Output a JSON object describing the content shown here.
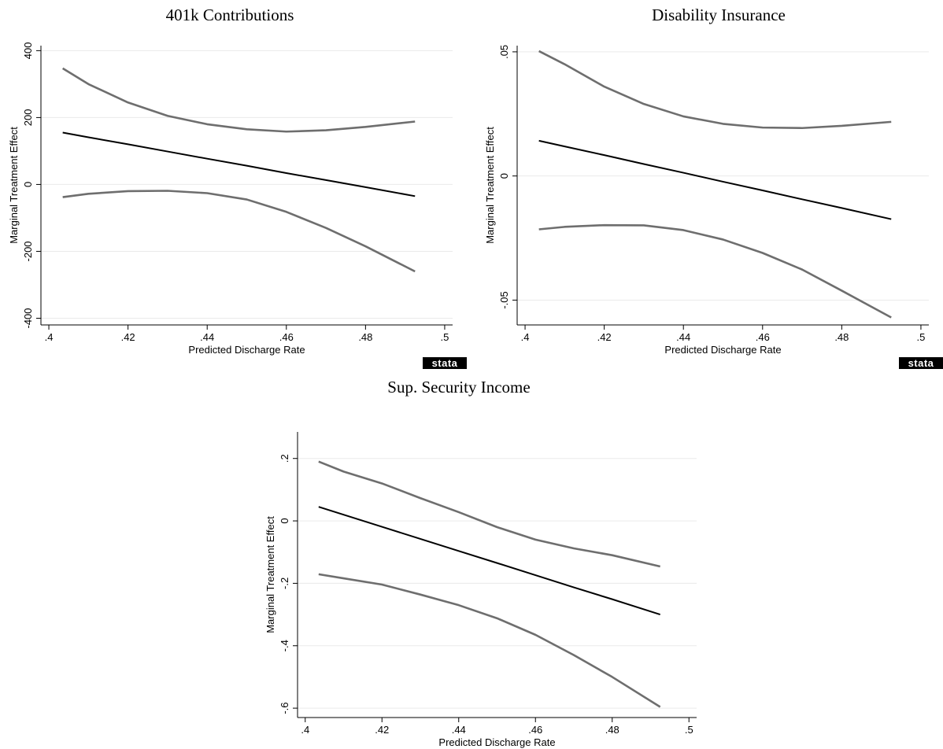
{
  "chart_data": [
    {
      "type": "line",
      "title": "401k Contributions",
      "xlabel": "Predicted Discharge Rate",
      "ylabel": "Marginal Treatment Effect",
      "logo": "stata",
      "x": [
        0.4035,
        0.41,
        0.42,
        0.43,
        0.44,
        0.45,
        0.46,
        0.47,
        0.48,
        0.4925
      ],
      "series": [
        {
          "color": "#000000",
          "values": [
            155,
            141,
            120,
            98.5,
            77,
            56,
            34,
            13,
            -8,
            -35
          ]
        },
        {
          "color": "#6e6e6e",
          "values": [
            347,
            300,
            245,
            205,
            180,
            165,
            158,
            162,
            172,
            188
          ]
        },
        {
          "color": "#6e6e6e",
          "values": [
            -38,
            -28,
            -20,
            -19,
            -26,
            -45,
            -82,
            -130,
            -185,
            -260
          ]
        }
      ],
      "xlim": [
        0.398,
        0.502
      ],
      "ylim": [
        -420,
        415
      ],
      "xticks": [
        {
          "value": 0.4,
          "label": ".4"
        },
        {
          "value": 0.42,
          "label": ".42"
        },
        {
          "value": 0.44,
          "label": ".44"
        },
        {
          "value": 0.46,
          "label": ".46"
        },
        {
          "value": 0.48,
          "label": ".48"
        },
        {
          "value": 0.5,
          "label": ".5"
        }
      ],
      "yticks": [
        -400,
        -200,
        0,
        200,
        400
      ],
      "grid": true
    },
    {
      "type": "line",
      "title": "Disability Insurance",
      "xlabel": "Predicted Discharge Rate",
      "ylabel": "Marginal Treatment Effect",
      "logo": "stata",
      "x": [
        0.4035,
        0.41,
        0.42,
        0.43,
        0.44,
        0.45,
        0.46,
        0.47,
        0.48,
        0.4925
      ],
      "series": [
        {
          "color": "#000000",
          "values": [
            0.0142,
            0.0119,
            0.0084,
            0.0048,
            0.0013,
            -0.0023,
            -0.0058,
            -0.0094,
            -0.0129,
            -0.0174
          ]
        },
        {
          "color": "#6e6e6e",
          "values": [
            0.0503,
            0.045,
            0.036,
            0.029,
            0.024,
            0.021,
            0.0195,
            0.0193,
            0.0202,
            0.0218
          ]
        },
        {
          "color": "#6e6e6e",
          "values": [
            -0.0215,
            -0.0205,
            -0.0198,
            -0.0199,
            -0.0218,
            -0.0256,
            -0.031,
            -0.0377,
            -0.0462,
            -0.057
          ]
        }
      ],
      "xlim": [
        0.398,
        0.502
      ],
      "ylim": [
        -0.06,
        0.0525
      ],
      "xticks": [
        {
          "value": 0.4,
          "label": ".4"
        },
        {
          "value": 0.42,
          "label": ".42"
        },
        {
          "value": 0.44,
          "label": ".44"
        },
        {
          "value": 0.46,
          "label": ".46"
        },
        {
          "value": 0.48,
          "label": ".48"
        },
        {
          "value": 0.5,
          "label": ".5"
        }
      ],
      "yticks": [
        {
          "value": -0.05,
          "label": "-.05"
        },
        0,
        {
          "value": 0.05,
          "label": ".05"
        }
      ],
      "grid": true
    },
    {
      "type": "line",
      "title": "Sup. Security Income",
      "xlabel": "Predicted Discharge Rate",
      "ylabel": "Marginal Treatment Effect",
      "x": [
        0.4035,
        0.41,
        0.42,
        0.43,
        0.44,
        0.45,
        0.46,
        0.47,
        0.48,
        0.4925
      ],
      "series": [
        {
          "color": "#000000",
          "values": [
            0.045,
            0.0198,
            -0.0189,
            -0.0577,
            -0.0964,
            -0.135,
            -0.174,
            -0.213,
            -0.251,
            -0.3
          ]
        },
        {
          "color": "#6e6e6e",
          "values": [
            0.19,
            0.158,
            0.12,
            0.073,
            0.028,
            -0.02,
            -0.06,
            -0.088,
            -0.11,
            -0.146
          ]
        },
        {
          "color": "#6e6e6e",
          "values": [
            -0.171,
            -0.184,
            -0.204,
            -0.236,
            -0.27,
            -0.312,
            -0.365,
            -0.43,
            -0.5,
            -0.596
          ]
        }
      ],
      "xlim": [
        0.398,
        0.502
      ],
      "ylim": [
        -0.63,
        0.285
      ],
      "xticks": [
        {
          "value": 0.4,
          "label": ".4"
        },
        {
          "value": 0.42,
          "label": ".42"
        },
        {
          "value": 0.44,
          "label": ".44"
        },
        {
          "value": 0.46,
          "label": ".46"
        },
        {
          "value": 0.48,
          "label": ".48"
        },
        {
          "value": 0.5,
          "label": ".5"
        }
      ],
      "yticks": [
        {
          "value": -0.6,
          "label": "-.6"
        },
        {
          "value": -0.4,
          "label": "-.4"
        },
        {
          "value": -0.2,
          "label": "-.2"
        },
        0,
        {
          "value": 0.2,
          "label": ".2"
        }
      ],
      "grid": true
    }
  ]
}
